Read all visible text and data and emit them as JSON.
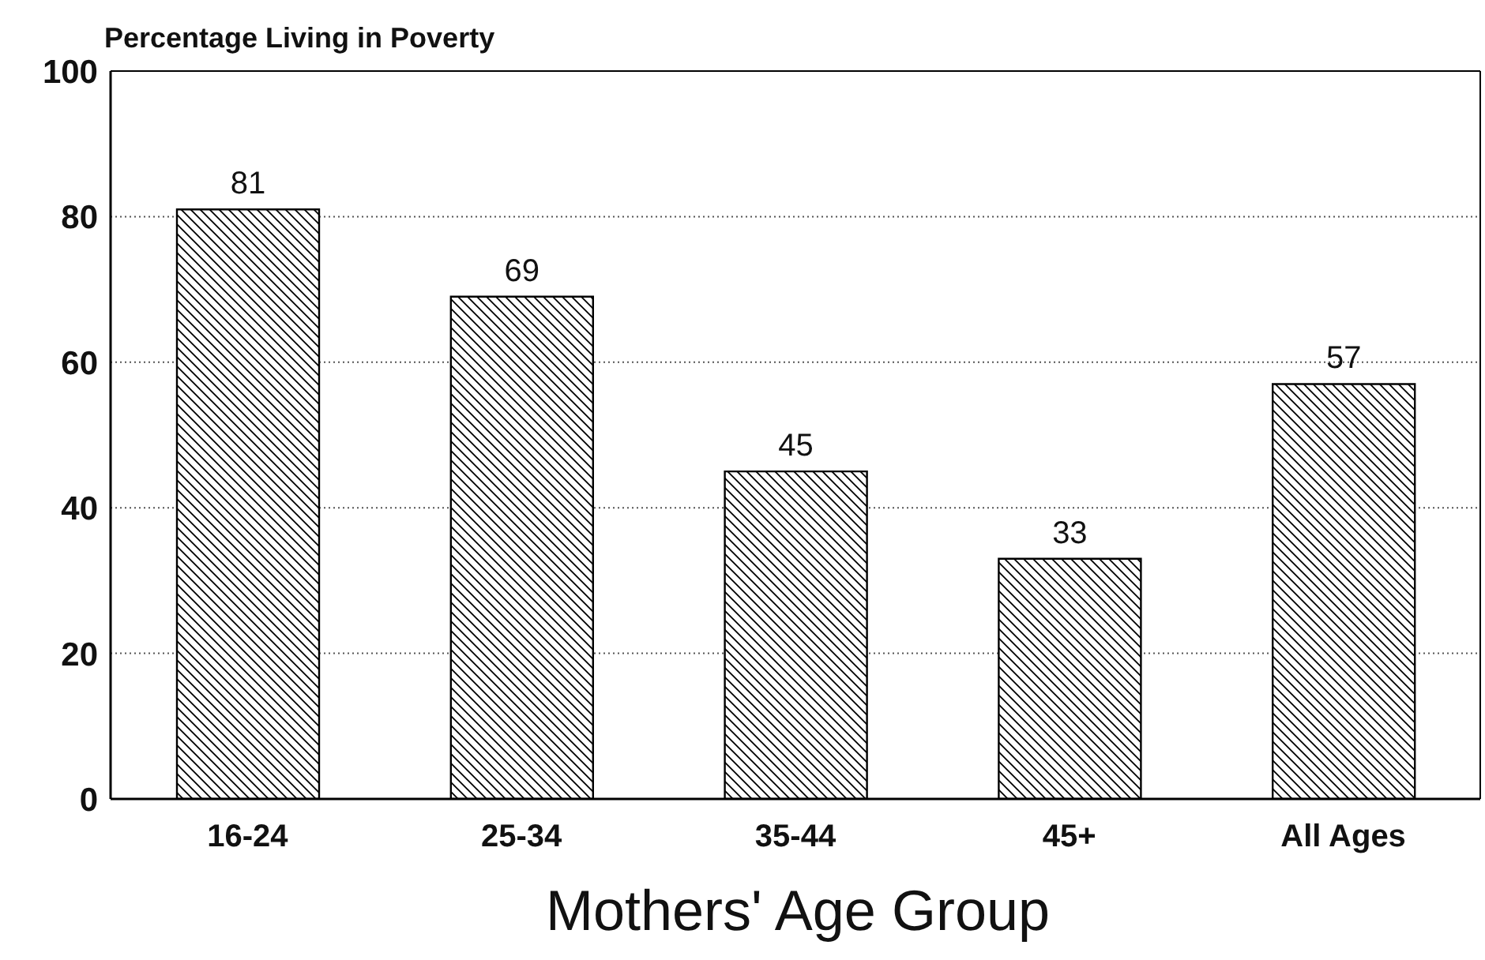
{
  "chart_data": {
    "type": "bar",
    "title": "Percentage Living in Poverty",
    "xlabel": "Mothers' Age Group",
    "categories": [
      "16-24",
      "25-34",
      "35-44",
      "45+",
      "All Ages"
    ],
    "values": [
      81,
      69,
      45,
      33,
      57
    ],
    "color": "#000000",
    "ylim": [
      0,
      100
    ],
    "yticks": [
      0,
      20,
      40,
      60,
      80,
      100
    ],
    "grid": "y",
    "data_labels": true
  }
}
